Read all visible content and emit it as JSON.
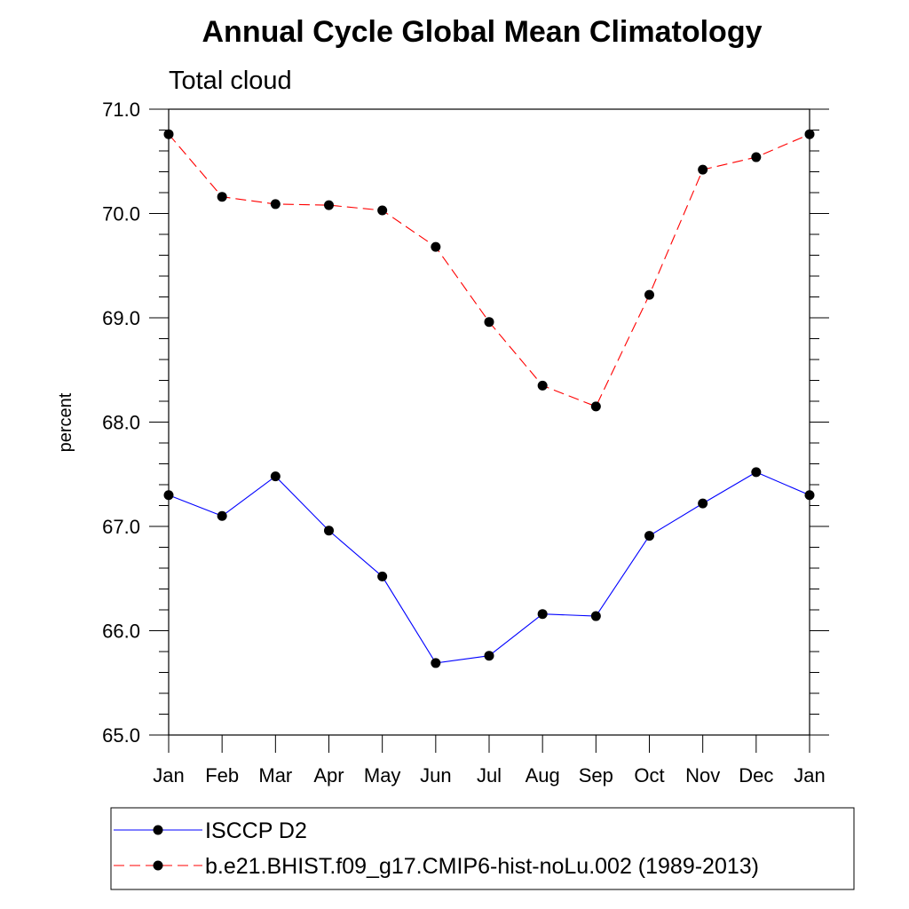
{
  "chart_data": {
    "type": "line",
    "title": "Annual Cycle Global Mean Climatology",
    "subtitle": "Total cloud",
    "xlabel": "",
    "ylabel": "percent",
    "categories": [
      "Jan",
      "Feb",
      "Mar",
      "Apr",
      "May",
      "Jun",
      "Jul",
      "Aug",
      "Sep",
      "Oct",
      "Nov",
      "Dec",
      "Jan"
    ],
    "ylim": [
      65.0,
      71.0
    ],
    "yticks": [
      "65.0",
      "66.0",
      "67.0",
      "68.0",
      "69.0",
      "70.0",
      "71.0"
    ],
    "grid": false,
    "legend_position": "bottom",
    "series": [
      {
        "name": "ISCCP D2",
        "color": "#0000ff",
        "dash": "solid",
        "marker": "filled-circle",
        "values": [
          67.3,
          67.1,
          67.48,
          66.96,
          66.52,
          65.69,
          65.76,
          66.16,
          66.14,
          66.91,
          67.22,
          67.52,
          67.3
        ]
      },
      {
        "name": "b.e21.BHIST.f09_g17.CMIP6-hist-noLu.002 (1989-2013)",
        "color": "#ff0000",
        "dash": "dashed",
        "marker": "filled-circle",
        "values": [
          70.76,
          70.16,
          70.09,
          70.08,
          70.03,
          69.68,
          68.96,
          68.35,
          68.15,
          69.22,
          70.42,
          70.54,
          70.76
        ]
      }
    ]
  }
}
